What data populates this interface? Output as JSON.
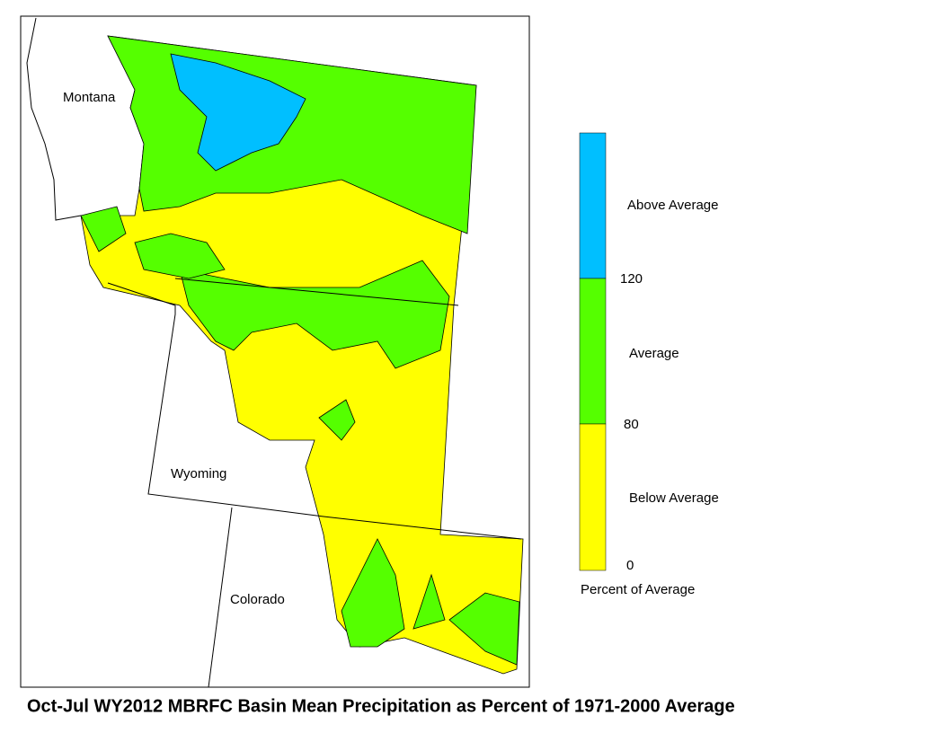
{
  "map": {
    "title": "Oct-Jul WY2012 MBRFC Basin Mean Precipitation as Percent of 1971-2000 Average",
    "states": [
      "Montana",
      "Wyoming",
      "Colorado"
    ],
    "legend": {
      "title": "Percent of Average",
      "classes": [
        {
          "label": "Above Average",
          "color": "#00bfff"
        },
        {
          "label": "Average",
          "color": "#55ff00"
        },
        {
          "label": "Below Average",
          "color": "#ffff00"
        }
      ],
      "ticks": [
        120,
        80,
        0
      ]
    }
  }
}
